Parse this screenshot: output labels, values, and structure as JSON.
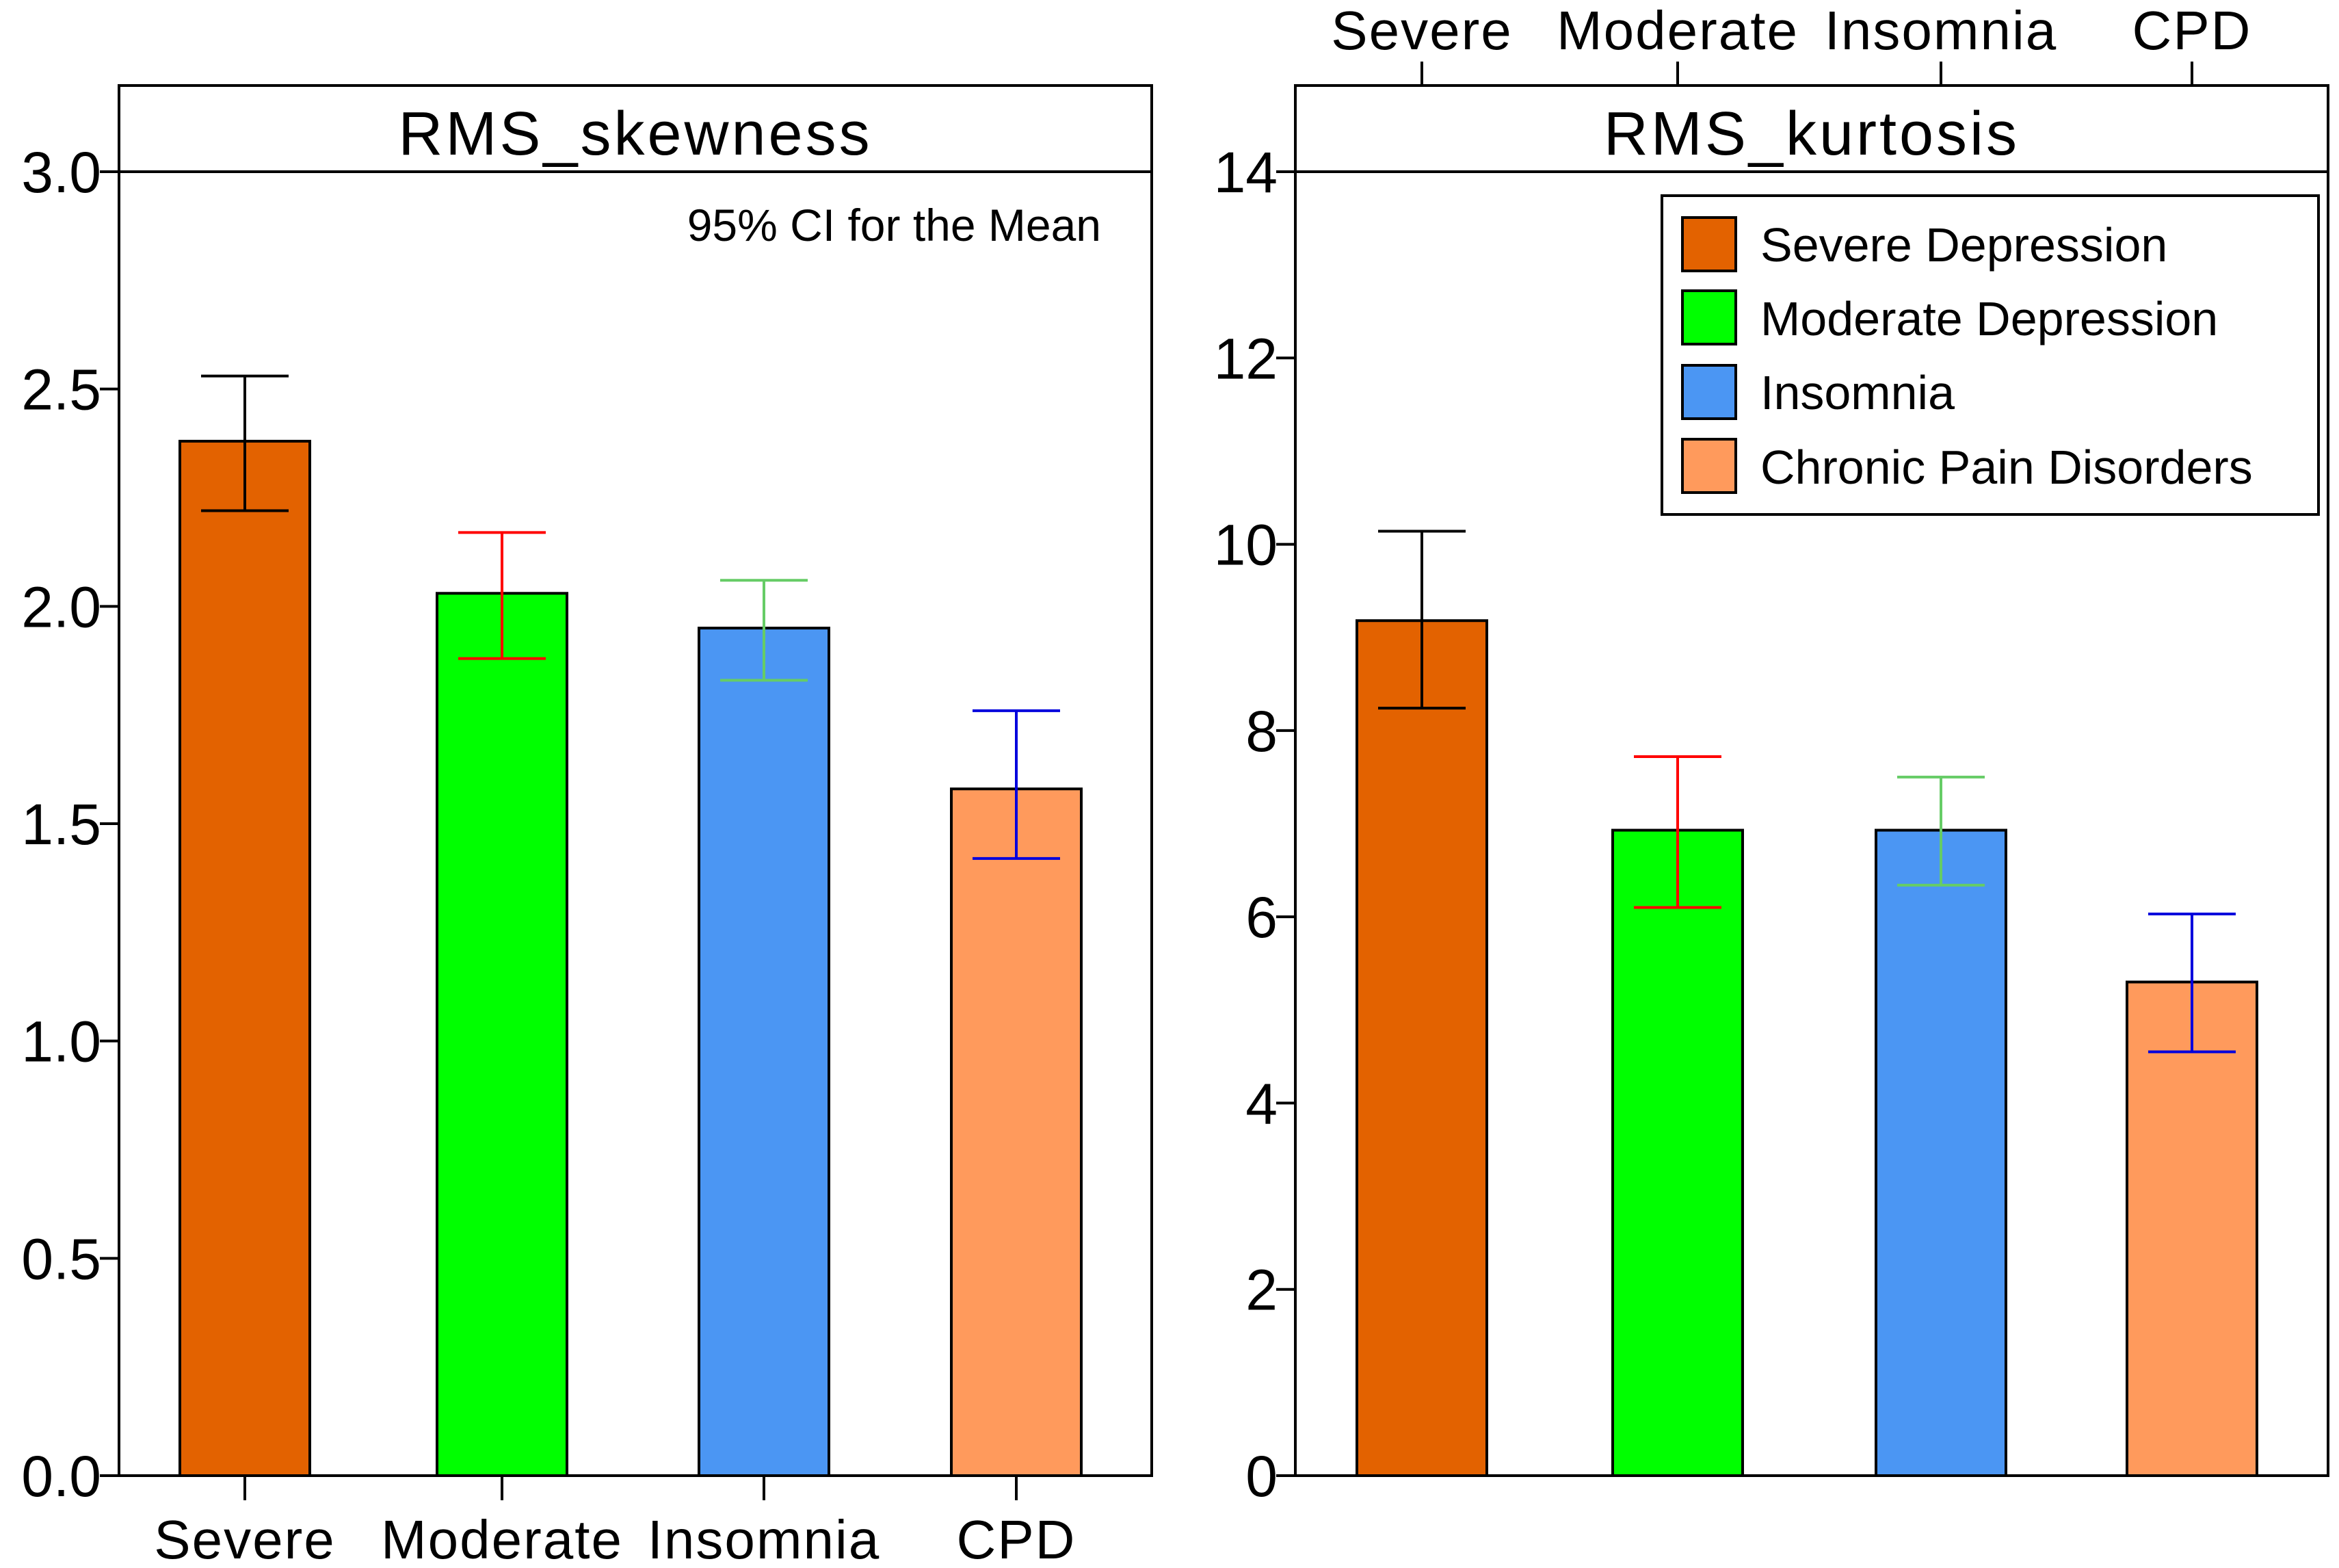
{
  "chart_data": [
    {
      "type": "bar",
      "title": "RMS_skewness",
      "annotation": "95% CI for the Mean",
      "categories": [
        "Severe",
        "Moderate",
        "Insomnia",
        "CPD"
      ],
      "values": [
        2.38,
        2.03,
        1.95,
        1.58
      ],
      "ci_lower": [
        2.22,
        1.88,
        1.83,
        1.42
      ],
      "ci_upper": [
        2.53,
        2.17,
        2.06,
        1.76
      ],
      "ylim": [
        0,
        3.2
      ],
      "yticks": [
        0.0,
        0.5,
        1.0,
        1.5,
        2.0,
        2.5,
        3.0
      ],
      "ytick_labels": [
        "0.0",
        "0.5",
        "1.0",
        "1.5",
        "2.0",
        "2.5",
        "3.0"
      ],
      "xlabel": "",
      "ylabel": "",
      "category_label_position": "bottom"
    },
    {
      "type": "bar",
      "title": "RMS_kurtosis",
      "categories": [
        "Severe",
        "Moderate",
        "Insomnia",
        "CPD"
      ],
      "values": [
        9.18,
        6.93,
        6.93,
        5.3
      ],
      "ci_lower": [
        8.24,
        6.1,
        6.34,
        4.55
      ],
      "ci_upper": [
        10.14,
        7.72,
        7.5,
        6.03
      ],
      "ylim": [
        0,
        15
      ],
      "yticks": [
        0,
        2,
        4,
        6,
        8,
        10,
        12,
        14
      ],
      "ytick_labels": [
        "0",
        "2",
        "4",
        "6",
        "8",
        "10",
        "12",
        "14"
      ],
      "xlabel": "",
      "ylabel": "",
      "category_label_position": "top",
      "legend": {
        "position": "top-right",
        "entries": [
          "Severe Depression",
          "Moderate Depression",
          "Insomnia",
          "Chronic Pain Disorders"
        ]
      }
    }
  ],
  "colors": {
    "bar_fills": [
      "#e36200",
      "#00ff00",
      "#4b96f3",
      "#ff9a5c"
    ],
    "error_bar_colors": [
      "#000000",
      "#ff0000",
      "#66cc66",
      "#0000dd"
    ],
    "frame": "#000000",
    "background": "#ffffff"
  }
}
